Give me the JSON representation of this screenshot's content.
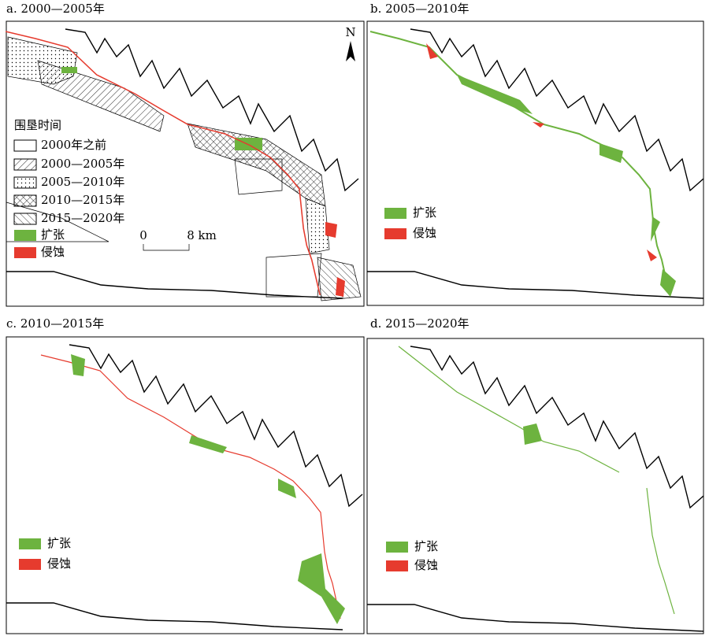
{
  "panels": [
    {
      "title": "a. 2000—2005年",
      "north": "N",
      "legend": {
        "title": "围垦时间",
        "items": [
          "2000年之前",
          "2000—2005年",
          "2005—2010年",
          "2010—2015年",
          "2015—2020年",
          "扩张",
          "侵蚀"
        ]
      },
      "scale": {
        "start": "0",
        "end": "8 km"
      }
    },
    {
      "title": "b. 2005—2010年",
      "legend": {
        "items": [
          "扩张",
          "侵蚀"
        ]
      }
    },
    {
      "title": "c. 2010—2015年",
      "legend": {
        "items": [
          "扩张",
          "侵蚀"
        ]
      }
    },
    {
      "title": "d. 2015—2020年",
      "legend": {
        "items": [
          "扩张",
          "侵蚀"
        ]
      }
    }
  ]
}
